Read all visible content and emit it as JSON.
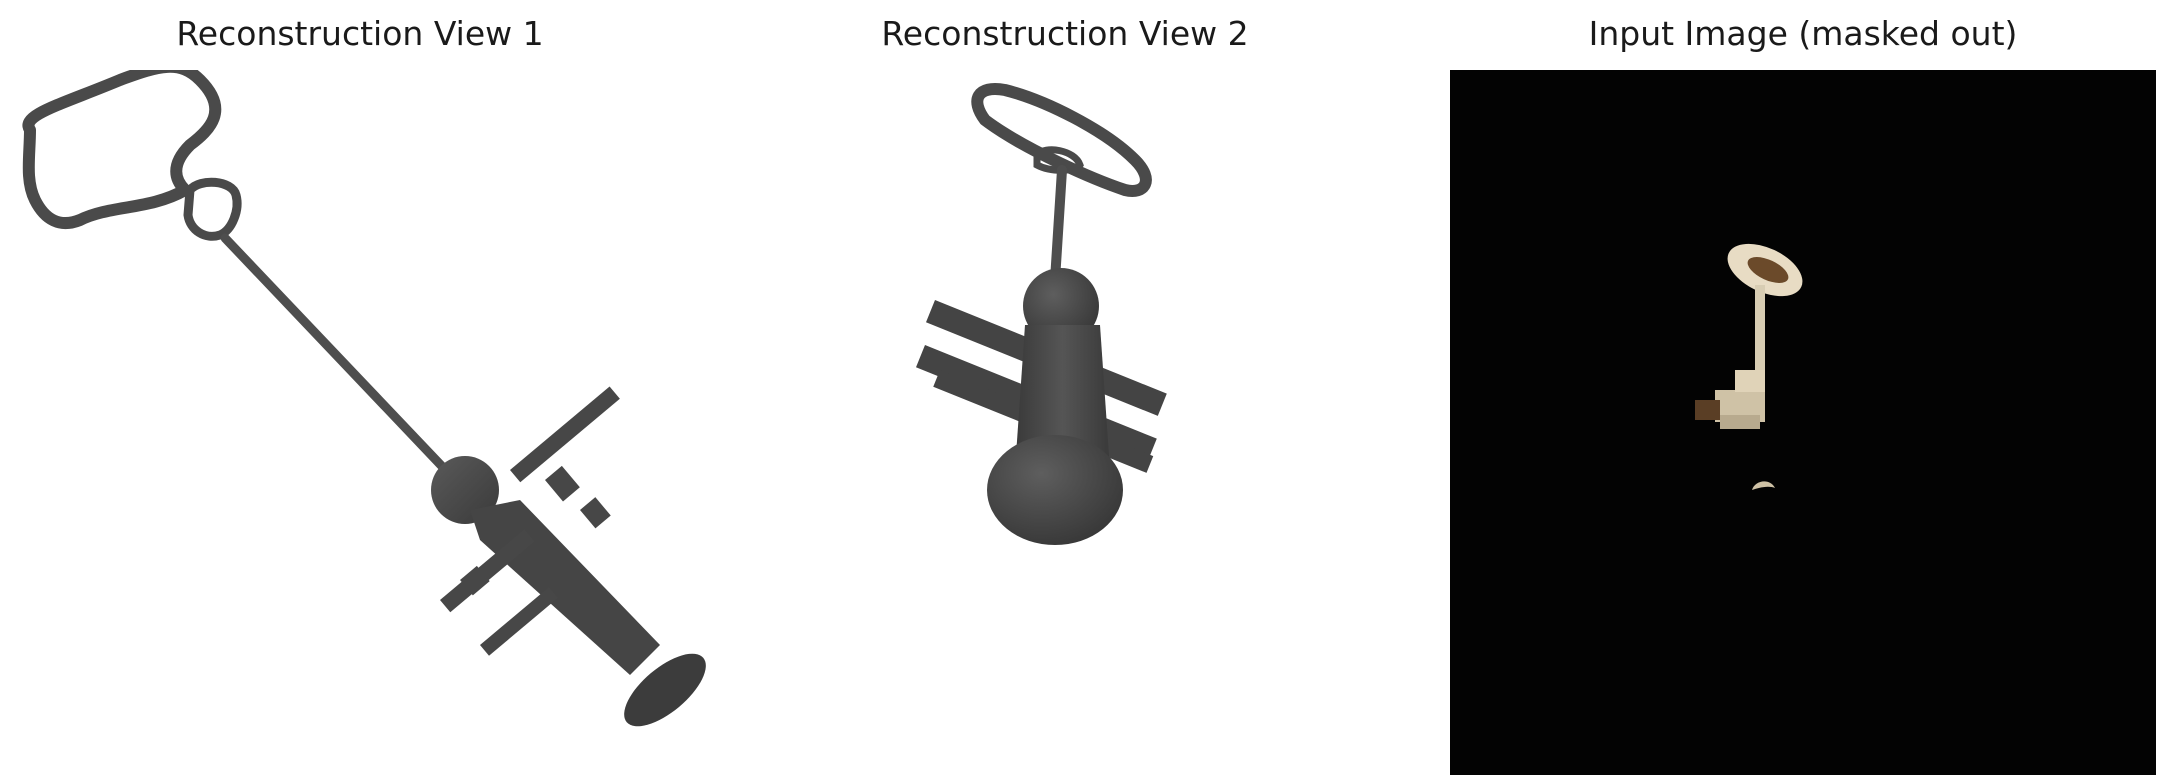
{
  "figure": {
    "panels": [
      {
        "title": "Reconstruction View 1",
        "content": "gray-3d-mesh-key-render"
      },
      {
        "title": "Reconstruction View 2",
        "content": "gray-3d-mesh-key-render"
      },
      {
        "title": "Input Image (masked out)",
        "content": "masked-photo-of-key-on-black"
      }
    ]
  },
  "colors": {
    "mesh": "#4a4a4a",
    "mesh_shadow": "#2f2f2f",
    "mesh_highlight": "#6a6a6a",
    "background": "#ffffff",
    "mask_background": "#030303",
    "key_beige": "#e8dcc4",
    "key_brown": "#6b4a2a"
  }
}
